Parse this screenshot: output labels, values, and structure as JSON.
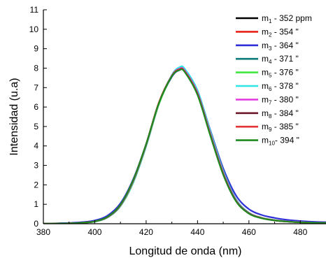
{
  "chart_data": {
    "type": "line",
    "xlabel": "Longitud de onda (nm)",
    "ylabel": "Intensidad (u.a)",
    "xlim": [
      380,
      490
    ],
    "ylim": [
      0,
      11
    ],
    "x_ticks": [
      380,
      400,
      420,
      440,
      460,
      480
    ],
    "y_ticks": [
      0,
      1,
      2,
      3,
      4,
      5,
      6,
      7,
      8,
      9,
      10,
      11
    ],
    "x_tick_labels": [
      "380",
      "400",
      "420",
      "440",
      "460",
      "480"
    ],
    "y_tick_labels": [
      "0",
      "1",
      "2",
      "3",
      "4",
      "5",
      "6",
      "7",
      "8",
      "9",
      "10",
      "11"
    ],
    "grid": false,
    "legend_position": "top-right",
    "x": [
      380,
      385,
      390,
      395,
      400,
      405,
      410,
      415,
      420,
      425,
      430,
      433,
      435,
      440,
      445,
      450,
      455,
      460,
      465,
      470,
      475,
      480,
      485,
      490
    ],
    "series": [
      {
        "name": "m1 - 352 ppm",
        "label_main": "m",
        "label_sub": "1",
        "label_rest": " - 352 ppm",
        "color": "#000000",
        "values": [
          0.0,
          0.01,
          0.02,
          0.05,
          0.12,
          0.35,
          0.95,
          2.2,
          4.05,
          6.2,
          7.6,
          7.95,
          7.85,
          6.7,
          4.6,
          2.6,
          1.2,
          0.55,
          0.3,
          0.18,
          0.12,
          0.08,
          0.05,
          0.04
        ]
      },
      {
        "name": "m2 - 354 \"",
        "label_main": "m",
        "label_sub": "2",
        "label_rest": " - 354    \"",
        "color": "#e8221c",
        "values": [
          0.0,
          0.01,
          0.02,
          0.05,
          0.12,
          0.35,
          0.98,
          2.25,
          4.1,
          6.25,
          7.62,
          7.96,
          7.86,
          6.72,
          4.62,
          2.62,
          1.22,
          0.56,
          0.3,
          0.18,
          0.12,
          0.08,
          0.05,
          0.04
        ]
      },
      {
        "name": "m3 - 364 \"",
        "label_main": "m",
        "label_sub": "3",
        "label_rest": " - 364    \"",
        "color": "#2f2fd8",
        "values": [
          0.0,
          0.02,
          0.04,
          0.08,
          0.17,
          0.42,
          1.05,
          2.3,
          4.1,
          6.2,
          7.55,
          7.9,
          7.85,
          6.8,
          4.8,
          2.85,
          1.45,
          0.75,
          0.45,
          0.3,
          0.2,
          0.14,
          0.1,
          0.08
        ]
      },
      {
        "name": "m4 - 371 \"",
        "label_main": "m",
        "label_sub": "4",
        "label_rest": " - 371    \"",
        "color": "#0b7a78",
        "values": [
          0.0,
          0.01,
          0.02,
          0.05,
          0.12,
          0.34,
          0.94,
          2.18,
          4.02,
          6.18,
          7.6,
          7.98,
          7.9,
          6.78,
          4.66,
          2.64,
          1.22,
          0.55,
          0.3,
          0.18,
          0.12,
          0.08,
          0.05,
          0.04
        ]
      },
      {
        "name": "m5 - 376 \"",
        "label_main": "m",
        "label_sub": "5",
        "label_rest": " - 376    \"",
        "color": "#3ee83e",
        "values": [
          0.0,
          0.01,
          0.02,
          0.05,
          0.11,
          0.32,
          0.9,
          2.12,
          3.98,
          6.15,
          7.6,
          8.0,
          7.95,
          6.85,
          4.75,
          2.72,
          1.26,
          0.57,
          0.31,
          0.19,
          0.12,
          0.08,
          0.05,
          0.04
        ]
      },
      {
        "name": "m6 - 378 \"",
        "label_main": "m",
        "label_sub": "6",
        "label_rest": " - 378    \"",
        "color": "#2ee6e6",
        "values": [
          0.0,
          0.01,
          0.02,
          0.05,
          0.11,
          0.33,
          0.92,
          2.15,
          4.0,
          6.2,
          7.65,
          8.05,
          7.97,
          6.86,
          4.74,
          2.7,
          1.25,
          0.56,
          0.3,
          0.18,
          0.12,
          0.08,
          0.05,
          0.04
        ]
      },
      {
        "name": "m7 - 380 \"",
        "label_main": "m",
        "label_sub": "7",
        "label_rest": " - 380    \"",
        "color": "#e23ee2",
        "values": [
          0.0,
          0.01,
          0.02,
          0.05,
          0.12,
          0.34,
          0.94,
          2.2,
          4.05,
          6.22,
          7.62,
          7.97,
          7.88,
          6.74,
          4.64,
          2.63,
          1.21,
          0.55,
          0.3,
          0.18,
          0.12,
          0.08,
          0.05,
          0.04
        ]
      },
      {
        "name": "m8 - 384 \"",
        "label_main": "m",
        "label_sub": "8",
        "label_rest": " - 384    \"",
        "color": "#6e1a2a",
        "values": [
          0.0,
          0.01,
          0.02,
          0.05,
          0.12,
          0.35,
          0.96,
          2.22,
          4.07,
          6.22,
          7.6,
          7.94,
          7.84,
          6.68,
          4.58,
          2.58,
          1.18,
          0.54,
          0.29,
          0.17,
          0.11,
          0.07,
          0.05,
          0.04
        ]
      },
      {
        "name": "m9 - 385 \"",
        "label_main": "m",
        "label_sub": "9",
        "label_rest": " - 385    \"",
        "color": "#e23434",
        "values": [
          0.0,
          0.01,
          0.02,
          0.05,
          0.12,
          0.35,
          0.97,
          2.24,
          4.09,
          6.24,
          7.6,
          7.93,
          7.83,
          6.66,
          4.56,
          2.56,
          1.17,
          0.53,
          0.29,
          0.17,
          0.11,
          0.07,
          0.05,
          0.04
        ]
      },
      {
        "name": "m10 - 394 \"",
        "label_main": "m",
        "label_sub": "10",
        "label_rest": "- 394    \"",
        "color": "#1f8a1f",
        "values": [
          0.0,
          0.01,
          0.02,
          0.05,
          0.12,
          0.36,
          0.98,
          2.26,
          4.1,
          6.22,
          7.58,
          7.9,
          7.8,
          6.62,
          4.52,
          2.52,
          1.15,
          0.52,
          0.28,
          0.17,
          0.11,
          0.07,
          0.05,
          0.04
        ]
      }
    ]
  }
}
